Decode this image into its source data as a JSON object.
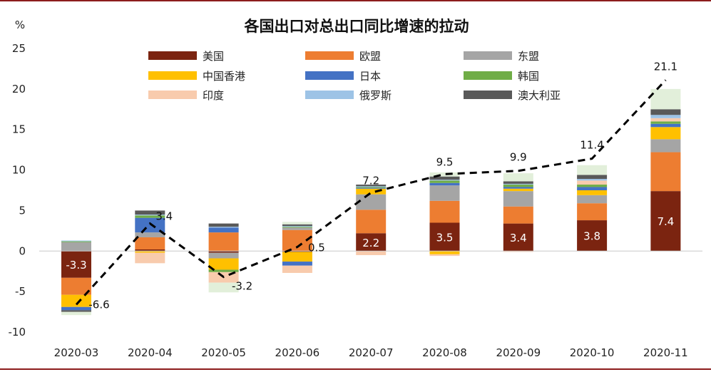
{
  "chart_data": {
    "type": "bar",
    "subtype": "stacked",
    "title": "各国出口对总出口同比增速的拉动",
    "ylabel": "%",
    "xlabel": "",
    "ylim": [
      -10,
      25
    ],
    "yticks": [
      "-10",
      "-5",
      "0",
      "5",
      "10",
      "15",
      "20",
      "25"
    ],
    "grid": false,
    "legend_position": "top",
    "categories": [
      "2020-03",
      "2020-04",
      "2020-05",
      "2020-06",
      "2020-07",
      "2020-08",
      "2020-09",
      "2020-10",
      "2020-11"
    ],
    "series": [
      {
        "name": "美国",
        "color": "#7b2410",
        "values": [
          -3.3,
          0.2,
          -0.2,
          -0.1,
          2.2,
          3.5,
          3.4,
          3.8,
          7.4
        ]
      },
      {
        "name": "欧盟",
        "color": "#ed7d31",
        "values": [
          -2.1,
          1.5,
          2.3,
          2.6,
          2.9,
          2.7,
          2.1,
          2.1,
          4.8
        ]
      },
      {
        "name": "东盟",
        "color": "#a5a5a5",
        "values": [
          1.1,
          0.6,
          -0.7,
          0.3,
          1.9,
          1.9,
          1.9,
          1.0,
          1.6
        ]
      },
      {
        "name": "中国香港",
        "color": "#ffc000",
        "values": [
          -1.5,
          -0.2,
          -1.4,
          -1.2,
          0.7,
          -0.4,
          0.3,
          0.6,
          1.5
        ]
      },
      {
        "name": "日本",
        "color": "#4472c4",
        "values": [
          -0.4,
          1.8,
          0.6,
          -0.5,
          0.1,
          0.3,
          0.2,
          0.4,
          0.4
        ]
      },
      {
        "name": "韩国",
        "color": "#70ad47",
        "values": [
          0.1,
          0.3,
          -0.3,
          0.1,
          0.1,
          0.3,
          0.3,
          0.3,
          0.3
        ]
      },
      {
        "name": "印度",
        "color": "#f8cbad",
        "values": [
          0.0,
          -1.3,
          -1.3,
          -0.9,
          -0.5,
          -0.2,
          -0.1,
          0.5,
          0.4
        ]
      },
      {
        "name": "俄罗斯",
        "color": "#9dc3e6",
        "values": [
          0.1,
          0.1,
          0.1,
          0.1,
          0.1,
          0.1,
          0.1,
          0.2,
          0.4
        ]
      },
      {
        "name": "澳大利亚",
        "color": "#595959",
        "values": [
          -0.2,
          0.5,
          0.4,
          0.2,
          0.2,
          0.4,
          0.3,
          0.5,
          0.7
        ]
      }
    ],
    "other": {
      "name": "",
      "color": "#e2efda",
      "values": [
        -0.4,
        0.0,
        -1.2,
        0.3,
        0.0,
        0.5,
        1.0,
        1.2,
        2.5
      ]
    },
    "total": {
      "name": "",
      "color": "#000000",
      "style": "dashed",
      "values": [
        -6.6,
        3.4,
        -3.2,
        0.5,
        7.2,
        9.5,
        9.9,
        11.4,
        21.1
      ]
    },
    "bar_labels": [
      {
        "category": "2020-03",
        "series": "美国",
        "text": "-3.3"
      },
      {
        "category": "2020-07",
        "series": "美国",
        "text": "2.2"
      },
      {
        "category": "2020-08",
        "series": "美国",
        "text": "3.5"
      },
      {
        "category": "2020-09",
        "series": "美国",
        "text": "3.4"
      },
      {
        "category": "2020-10",
        "series": "美国",
        "text": "3.8"
      },
      {
        "category": "2020-11",
        "series": "美国",
        "text": "7.4"
      }
    ],
    "total_labels": [
      "-6.6",
      "3.4",
      "-3.2",
      "0.5",
      "7.2",
      "9.5",
      "9.9",
      "11.4",
      "21.1"
    ]
  }
}
